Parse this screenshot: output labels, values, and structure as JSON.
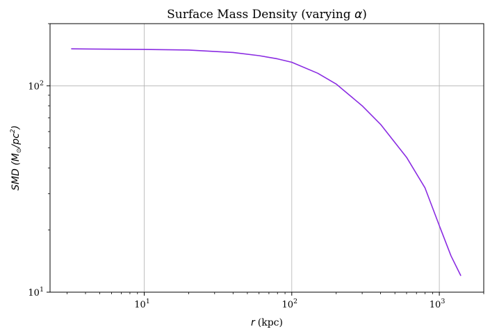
{
  "chart_data": {
    "type": "line",
    "title_prefix": "Surface Mass Density (varying ",
    "title_symbol": "α",
    "title_suffix": ")",
    "x_scale": "log",
    "y_scale": "log",
    "xlim": [
      2.3,
      2000
    ],
    "ylim": [
      10,
      200
    ],
    "xlabel_var": "r",
    "xlabel_unit": "(kpc)",
    "ylabel_text": "SMD (M",
    "ylabel_sub": "⊙",
    "ylabel_mid": "/pc",
    "ylabel_sup": "2",
    "ylabel_end": ")",
    "x_ticks": [
      {
        "value": 10,
        "base": "10",
        "exp": "1"
      },
      {
        "value": 100,
        "base": "10",
        "exp": "2"
      },
      {
        "value": 1000,
        "base": "10",
        "exp": "3"
      }
    ],
    "y_ticks": [
      {
        "value": 10,
        "base": "10",
        "exp": "1"
      },
      {
        "value": 100,
        "base": "10",
        "exp": "2"
      }
    ],
    "grid": true,
    "legend": "none",
    "series": [
      {
        "color": "#8a2be2",
        "x": [
          3.2,
          5,
          10,
          20,
          40,
          60,
          80,
          100,
          150,
          200,
          300,
          400,
          600,
          800,
          1000,
          1200,
          1400
        ],
        "y": [
          151,
          150.5,
          150,
          149,
          145,
          140,
          135,
          130,
          115,
          102,
          80,
          65,
          45,
          32,
          21,
          15,
          12
        ]
      }
    ]
  }
}
